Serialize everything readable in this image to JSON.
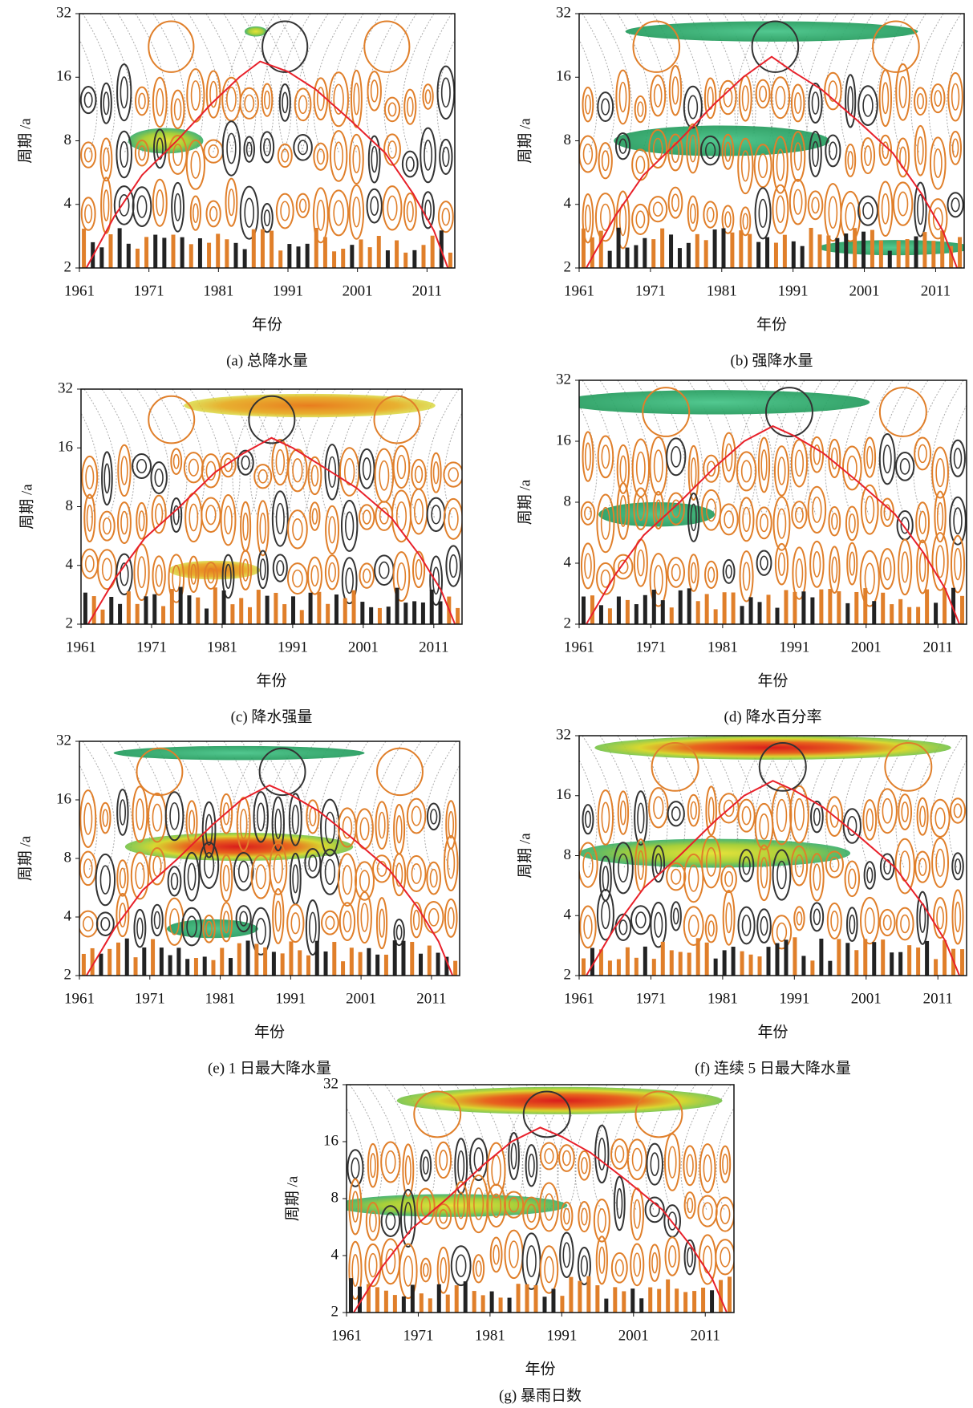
{
  "chart_data": [
    {
      "type": "wavelet",
      "caption": "(a) 总降水量",
      "x_label": "年份",
      "y_label": "周期 /a",
      "xlim": [
        1961,
        2015
      ],
      "ylim": [
        2,
        32
      ],
      "y_scale": "log2",
      "xticks": [
        1961,
        1971,
        1981,
        1991,
        2001,
        2011
      ],
      "yticks": [
        2,
        4,
        8,
        16,
        32
      ],
      "series": [
        {
          "color": "#e8202a",
          "x": [
            1962,
            1966,
            1970,
            1975,
            1980,
            1984,
            1987,
            1991,
            1995,
            2000,
            2005,
            2009,
            2012,
            2014
          ],
          "values": [
            2,
            3.5,
            5.5,
            8,
            12,
            16,
            19,
            17,
            14,
            10,
            7,
            4.5,
            3,
            2
          ]
        }
      ]
    },
    {
      "type": "wavelet",
      "caption": "(b) 强降水量",
      "x_label": "年份",
      "y_label": "周期 /a",
      "xlim": [
        1961,
        2015
      ],
      "ylim": [
        2,
        32
      ],
      "y_scale": "log2",
      "xticks": [
        1961,
        1971,
        1981,
        1991,
        2001,
        2011
      ],
      "yticks": [
        2,
        4,
        8,
        16,
        32
      ],
      "series": [
        {
          "color": "#e8202a",
          "x": [
            1962,
            1966,
            1970,
            1975,
            1980,
            1984,
            1988,
            1991,
            1995,
            2000,
            2005,
            2009,
            2012,
            2014
          ],
          "values": [
            2,
            3.5,
            5.5,
            8,
            12,
            16,
            20,
            17,
            14,
            10,
            7,
            4.5,
            3,
            2
          ]
        }
      ]
    },
    {
      "type": "wavelet",
      "caption": "(c) 降水强量",
      "x_label": "年份",
      "y_label": "周期 /a",
      "xlim": [
        1961,
        2015
      ],
      "ylim": [
        2,
        32
      ],
      "y_scale": "log2",
      "xticks": [
        1961,
        1971,
        1981,
        1991,
        2001,
        2011
      ],
      "yticks": [
        2,
        4,
        8,
        16,
        32
      ],
      "series": [
        {
          "color": "#e8202a",
          "x": [
            1962,
            1966,
            1970,
            1975,
            1980,
            1984,
            1988,
            1991,
            1995,
            2000,
            2005,
            2009,
            2012,
            2014
          ],
          "values": [
            2,
            3.5,
            5.5,
            8,
            12,
            15,
            18,
            16,
            13,
            10,
            7,
            4.5,
            3,
            2
          ]
        }
      ]
    },
    {
      "type": "wavelet",
      "caption": "(d) 降水百分率",
      "x_label": "年份",
      "y_label": "周期 /a",
      "xlim": [
        1961,
        2015
      ],
      "ylim": [
        2,
        32
      ],
      "y_scale": "log2",
      "xticks": [
        1961,
        1971,
        1981,
        1991,
        2001,
        2011
      ],
      "yticks": [
        2,
        4,
        8,
        16,
        32
      ],
      "series": [
        {
          "color": "#e8202a",
          "x": [
            1962,
            1966,
            1970,
            1975,
            1980,
            1984,
            1988,
            1991,
            1995,
            2000,
            2005,
            2009,
            2012,
            2014
          ],
          "values": [
            2,
            3.5,
            5.5,
            8,
            12,
            16,
            19,
            17,
            14,
            10,
            7,
            4.5,
            3,
            2
          ]
        }
      ]
    },
    {
      "type": "wavelet",
      "caption": "(e) 1 日最大降水量",
      "x_label": "年份",
      "y_label": "周期 /a",
      "xlim": [
        1961,
        2015
      ],
      "ylim": [
        2,
        32
      ],
      "y_scale": "log2",
      "xticks": [
        1961,
        1971,
        1981,
        1991,
        2001,
        2011
      ],
      "yticks": [
        2,
        4,
        8,
        16,
        32
      ],
      "series": [
        {
          "color": "#e8202a",
          "x": [
            1962,
            1966,
            1970,
            1975,
            1980,
            1984,
            1988,
            1991,
            1995,
            2000,
            2005,
            2009,
            2012,
            2014
          ],
          "values": [
            2,
            3.5,
            5.5,
            8,
            12,
            16,
            19,
            17,
            14,
            10,
            7,
            4.5,
            3,
            2
          ]
        }
      ]
    },
    {
      "type": "wavelet",
      "caption": "(f) 连续 5 日最大降水量",
      "x_label": "年份",
      "y_label": "周期 /a",
      "xlim": [
        1961,
        2015
      ],
      "ylim": [
        2,
        32
      ],
      "y_scale": "log2",
      "xticks": [
        1961,
        1971,
        1981,
        1991,
        2001,
        2011
      ],
      "yticks": [
        2,
        4,
        8,
        16,
        32
      ],
      "series": [
        {
          "color": "#e8202a",
          "x": [
            1962,
            1966,
            1970,
            1975,
            1980,
            1984,
            1988,
            1991,
            1995,
            2000,
            2005,
            2009,
            2012,
            2014
          ],
          "values": [
            2,
            3.5,
            5.5,
            8,
            12,
            16,
            19,
            17,
            14,
            10,
            7,
            4.5,
            3,
            2
          ]
        }
      ]
    },
    {
      "type": "wavelet",
      "caption": "(g) 暴雨日数",
      "x_label": "年份",
      "y_label": "周期 /a",
      "xlim": [
        1961,
        2015
      ],
      "ylim": [
        2,
        32
      ],
      "y_scale": "log2",
      "xticks": [
        1961,
        1971,
        1981,
        1991,
        2001,
        2011
      ],
      "yticks": [
        2,
        4,
        8,
        16,
        32
      ],
      "series": [
        {
          "color": "#e8202a",
          "x": [
            1962,
            1966,
            1970,
            1975,
            1980,
            1984,
            1988,
            1991,
            1995,
            2000,
            2005,
            2009,
            2012,
            2014
          ],
          "values": [
            2,
            3.5,
            5.5,
            8,
            12,
            16,
            19,
            17,
            14,
            10,
            7,
            4.5,
            3,
            2
          ]
        }
      ]
    }
  ]
}
